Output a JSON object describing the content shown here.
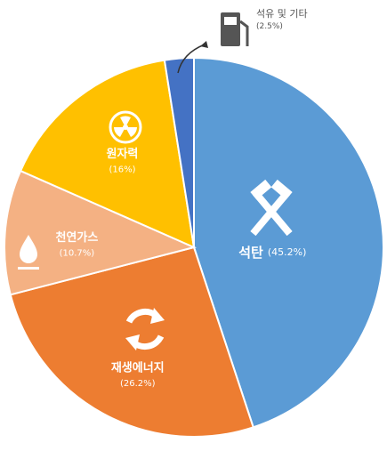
{
  "chart_data": {
    "type": "pie",
    "categories": [
      "석탄",
      "재생에너지",
      "천연가스",
      "원자력",
      "석유 및 기타"
    ],
    "values": [
      45.2,
      26.2,
      10.7,
      16,
      2.5
    ],
    "value_labels": [
      "(45.2%)",
      "(26.2%)",
      "(10.7%)",
      "(16%)",
      "(2.5%)"
    ],
    "colors": [
      "#5b9bd5",
      "#ed7d31",
      "#f4b183",
      "#ffc000",
      "#4472c4"
    ]
  }
}
